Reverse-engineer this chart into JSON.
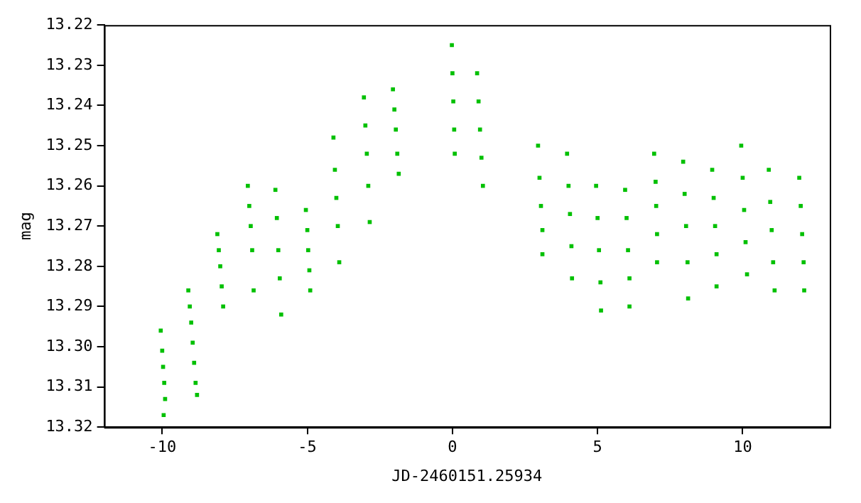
{
  "chart_data": {
    "type": "scatter",
    "xlabel": "JD-2460151.25934",
    "ylabel": "mag",
    "xlim": [
      -12,
      13
    ],
    "xticks": [
      -10,
      -5,
      0,
      5,
      10
    ],
    "ylim": [
      13.32,
      13.22
    ],
    "yticks": [
      13.22,
      13.23,
      13.24,
      13.25,
      13.26,
      13.27,
      13.28,
      13.29,
      {
        "value": 13.3,
        "label": "13.30"
      },
      13.31,
      13.32
    ],
    "grid": false,
    "marker": "square",
    "legend": false,
    "series": [
      {
        "color": "#00c000",
        "x": [
          -10.05,
          -10.0,
          -9.97,
          -9.93,
          -9.9,
          -9.95,
          -9.1,
          -9.05,
          -9.0,
          -8.95,
          -8.9,
          -8.85,
          -8.8,
          -8.1,
          -8.05,
          -8.0,
          -7.95,
          -7.9,
          -7.05,
          -7.0,
          -6.95,
          -6.9,
          -6.85,
          -6.1,
          -6.05,
          -6.0,
          -5.95,
          -5.9,
          -5.05,
          -5.0,
          -4.97,
          -4.93,
          -4.9,
          -4.1,
          -4.05,
          -4.0,
          -3.95,
          -3.9,
          -3.05,
          -3.0,
          -2.95,
          -2.9,
          -2.85,
          -2.05,
          -2.0,
          -1.95,
          -1.9,
          -1.85,
          -0.02,
          0.0,
          0.03,
          0.06,
          0.08,
          0.85,
          0.9,
          0.95,
          1.0,
          1.05,
          2.95,
          3.0,
          3.05,
          3.1,
          3.1,
          3.95,
          4.0,
          4.05,
          4.1,
          4.12,
          4.95,
          5.0,
          5.05,
          5.1,
          5.12,
          5.95,
          6.0,
          6.05,
          6.1,
          6.1,
          6.95,
          7.0,
          7.02,
          7.05,
          7.05,
          7.95,
          8.0,
          8.05,
          8.1,
          8.12,
          8.95,
          9.0,
          9.05,
          9.1,
          9.1,
          9.95,
          10.0,
          10.05,
          10.1,
          10.15,
          10.9,
          10.95,
          11.0,
          11.05,
          11.1,
          11.95,
          12.0,
          12.05,
          12.1,
          12.12
        ],
        "values": [
          13.296,
          13.301,
          13.305,
          13.309,
          13.313,
          13.317,
          13.286,
          13.29,
          13.294,
          13.299,
          13.304,
          13.309,
          13.312,
          13.272,
          13.276,
          13.28,
          13.285,
          13.29,
          13.26,
          13.265,
          13.27,
          13.276,
          13.286,
          13.261,
          13.268,
          13.276,
          13.283,
          13.292,
          13.266,
          13.271,
          13.276,
          13.281,
          13.286,
          13.248,
          13.256,
          13.263,
          13.27,
          13.279,
          13.238,
          13.245,
          13.252,
          13.26,
          13.269,
          13.236,
          13.241,
          13.246,
          13.252,
          13.257,
          13.225,
          13.232,
          13.239,
          13.246,
          13.252,
          13.232,
          13.239,
          13.246,
          13.253,
          13.26,
          13.25,
          13.258,
          13.265,
          13.271,
          13.277,
          13.252,
          13.26,
          13.267,
          13.275,
          13.283,
          13.26,
          13.268,
          13.276,
          13.284,
          13.291,
          13.261,
          13.268,
          13.276,
          13.283,
          13.29,
          13.252,
          13.259,
          13.265,
          13.272,
          13.279,
          13.254,
          13.262,
          13.27,
          13.279,
          13.288,
          13.256,
          13.263,
          13.27,
          13.277,
          13.285,
          13.25,
          13.258,
          13.266,
          13.274,
          13.282,
          13.256,
          13.264,
          13.271,
          13.279,
          13.286,
          13.258,
          13.265,
          13.272,
          13.279,
          13.286
        ]
      }
    ]
  }
}
